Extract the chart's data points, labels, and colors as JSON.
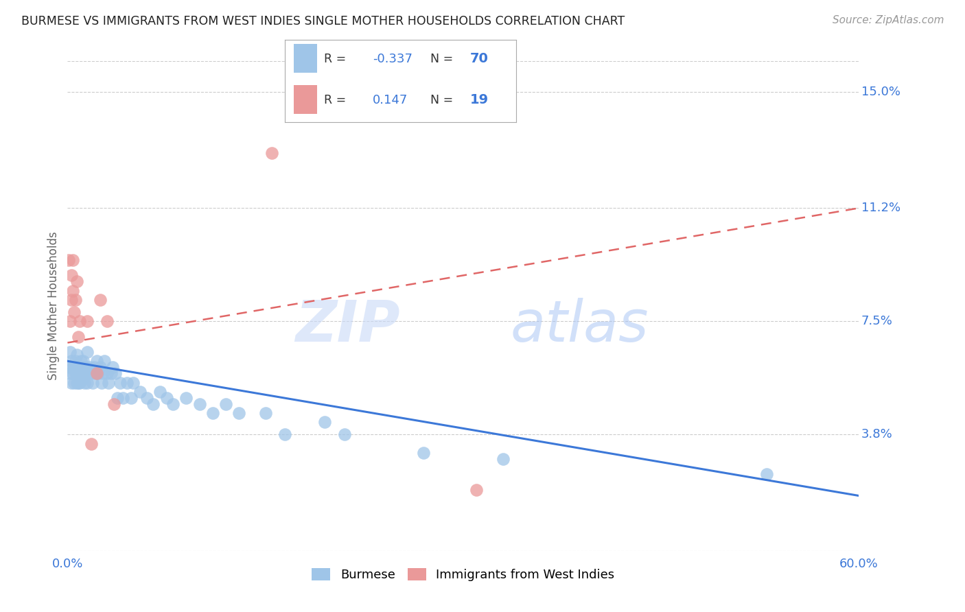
{
  "title": "BURMESE VS IMMIGRANTS FROM WEST INDIES SINGLE MOTHER HOUSEHOLDS CORRELATION CHART",
  "source": "Source: ZipAtlas.com",
  "ylabel": "Single Mother Households",
  "xlim": [
    0.0,
    0.6
  ],
  "ylim": [
    0.0,
    0.16
  ],
  "xticks": [
    0.0,
    0.1,
    0.2,
    0.3,
    0.4,
    0.5,
    0.6
  ],
  "xticklabels": [
    "0.0%",
    "",
    "",
    "",
    "",
    "",
    "60.0%"
  ],
  "ytick_labels_right": [
    "15.0%",
    "11.2%",
    "7.5%",
    "3.8%"
  ],
  "ytick_values_right": [
    0.15,
    0.112,
    0.075,
    0.038
  ],
  "legend_label1": "Burmese",
  "legend_label2": "Immigrants from West Indies",
  "legend_R1": "-0.337",
  "legend_N1": "70",
  "legend_R2": "0.147",
  "legend_N2": "19",
  "color_blue": "#9fc5e8",
  "color_pink": "#ea9999",
  "color_line_blue": "#3c78d8",
  "color_line_pink": "#e06666",
  "color_axis_labels": "#3c78d8",
  "color_grid": "#cccccc",
  "burmese_x": [
    0.001,
    0.002,
    0.002,
    0.003,
    0.003,
    0.004,
    0.004,
    0.005,
    0.005,
    0.006,
    0.006,
    0.007,
    0.007,
    0.007,
    0.008,
    0.008,
    0.009,
    0.009,
    0.01,
    0.01,
    0.011,
    0.011,
    0.012,
    0.012,
    0.013,
    0.013,
    0.014,
    0.015,
    0.015,
    0.016,
    0.017,
    0.018,
    0.019,
    0.02,
    0.021,
    0.022,
    0.023,
    0.025,
    0.026,
    0.027,
    0.028,
    0.03,
    0.031,
    0.033,
    0.034,
    0.036,
    0.038,
    0.04,
    0.042,
    0.045,
    0.048,
    0.05,
    0.055,
    0.06,
    0.065,
    0.07,
    0.075,
    0.08,
    0.09,
    0.1,
    0.11,
    0.12,
    0.13,
    0.15,
    0.165,
    0.195,
    0.21,
    0.27,
    0.33,
    0.53
  ],
  "burmese_y": [
    0.06,
    0.058,
    0.065,
    0.055,
    0.062,
    0.058,
    0.06,
    0.055,
    0.06,
    0.058,
    0.062,
    0.055,
    0.058,
    0.064,
    0.055,
    0.06,
    0.055,
    0.058,
    0.058,
    0.062,
    0.06,
    0.056,
    0.058,
    0.062,
    0.058,
    0.055,
    0.06,
    0.055,
    0.065,
    0.058,
    0.06,
    0.058,
    0.055,
    0.06,
    0.058,
    0.062,
    0.058,
    0.06,
    0.055,
    0.058,
    0.062,
    0.058,
    0.055,
    0.058,
    0.06,
    0.058,
    0.05,
    0.055,
    0.05,
    0.055,
    0.05,
    0.055,
    0.052,
    0.05,
    0.048,
    0.052,
    0.05,
    0.048,
    0.05,
    0.048,
    0.045,
    0.048,
    0.045,
    0.045,
    0.038,
    0.042,
    0.038,
    0.032,
    0.03,
    0.025
  ],
  "westindies_x": [
    0.001,
    0.002,
    0.003,
    0.003,
    0.004,
    0.004,
    0.005,
    0.006,
    0.007,
    0.008,
    0.009,
    0.015,
    0.018,
    0.022,
    0.025,
    0.03,
    0.035,
    0.155,
    0.31
  ],
  "westindies_y": [
    0.095,
    0.075,
    0.082,
    0.09,
    0.085,
    0.095,
    0.078,
    0.082,
    0.088,
    0.07,
    0.075,
    0.075,
    0.035,
    0.058,
    0.082,
    0.075,
    0.048,
    0.13,
    0.02
  ],
  "burmese_trend_y_start": 0.062,
  "burmese_trend_y_end": 0.018,
  "westindies_trend_y_start": 0.068,
  "westindies_trend_y_end": 0.112
}
